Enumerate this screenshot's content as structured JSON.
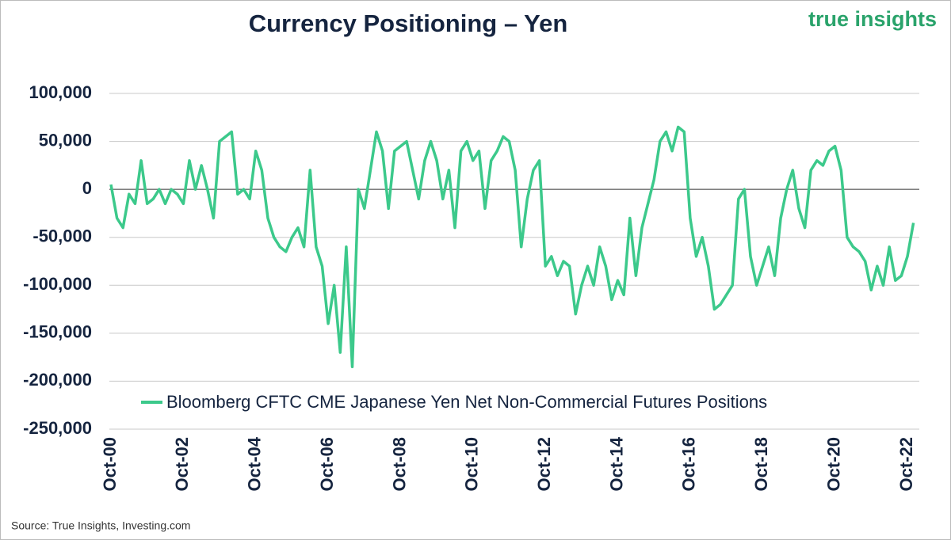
{
  "chart_data": {
    "type": "line",
    "title": "Currency Positioning – Yen",
    "logo": "true insights",
    "source": "Source: True Insights, Investing.com",
    "categories": [
      "Oct-00",
      null,
      null,
      null,
      null,
      null,
      null,
      null,
      null,
      null,
      null,
      null,
      "Oct-02",
      null,
      null,
      null,
      null,
      null,
      null,
      null,
      null,
      null,
      null,
      null,
      "Oct-04",
      null,
      null,
      null,
      null,
      null,
      null,
      null,
      null,
      null,
      null,
      null,
      "Oct-06",
      null,
      null,
      null,
      null,
      null,
      null,
      null,
      null,
      null,
      null,
      null,
      "Oct-08",
      null,
      null,
      null,
      null,
      null,
      null,
      null,
      null,
      null,
      null,
      null,
      "Oct-10",
      null,
      null,
      null,
      null,
      null,
      null,
      null,
      null,
      null,
      null,
      null,
      "Oct-12",
      null,
      null,
      null,
      null,
      null,
      null,
      null,
      null,
      null,
      null,
      null,
      "Oct-14",
      null,
      null,
      null,
      null,
      null,
      null,
      null,
      null,
      null,
      null,
      null,
      "Oct-16",
      null,
      null,
      null,
      null,
      null,
      null,
      null,
      null,
      null,
      null,
      null,
      "Oct-18",
      null,
      null,
      null,
      null,
      null,
      null,
      null,
      null,
      null,
      null,
      null,
      "Oct-20",
      null,
      null,
      null,
      null,
      null,
      null,
      null,
      null,
      null,
      null,
      null,
      "Oct-22",
      null
    ],
    "series": [
      {
        "name": "Bloomberg CFTC CME Japanese Yen Net Non-Commercial Futures Positions",
        "color": "#3cc98b",
        "values": [
          5000,
          -30000,
          -40000,
          -5000,
          -15000,
          30000,
          -15000,
          -10000,
          0,
          -15000,
          0,
          -5000,
          -15000,
          30000,
          0,
          25000,
          0,
          -30000,
          50000,
          55000,
          60000,
          -5000,
          0,
          -10000,
          40000,
          20000,
          -30000,
          -50000,
          -60000,
          -65000,
          -50000,
          -40000,
          -60000,
          20000,
          -60000,
          -80000,
          -140000,
          -100000,
          -170000,
          -60000,
          -185000,
          0,
          -20000,
          20000,
          60000,
          40000,
          -20000,
          40000,
          45000,
          50000,
          20000,
          -10000,
          30000,
          50000,
          30000,
          -10000,
          20000,
          -40000,
          40000,
          50000,
          30000,
          40000,
          -20000,
          30000,
          40000,
          55000,
          50000,
          20000,
          -60000,
          -10000,
          20000,
          30000,
          -80000,
          -70000,
          -90000,
          -75000,
          -80000,
          -130000,
          -100000,
          -80000,
          -100000,
          -60000,
          -80000,
          -115000,
          -95000,
          -110000,
          -30000,
          -90000,
          -40000,
          -15000,
          10000,
          50000,
          60000,
          40000,
          65000,
          60000,
          -30000,
          -70000,
          -50000,
          -80000,
          -125000,
          -120000,
          -110000,
          -100000,
          -10000,
          0,
          -70000,
          -100000,
          -80000,
          -60000,
          -90000,
          -30000,
          0,
          20000,
          -20000,
          -40000,
          20000,
          30000,
          25000,
          40000,
          45000,
          20000,
          -50000,
          -60000,
          -65000,
          -75000,
          -105000,
          -80000,
          -100000,
          -60000,
          -95000,
          -90000,
          -70000,
          -35000
        ]
      }
    ],
    "ylim": [
      -250000,
      100000
    ],
    "yticks": [
      {
        "value": -250000,
        "label": "-250,000"
      },
      {
        "value": -200000,
        "label": "-200,000"
      },
      {
        "value": -150000,
        "label": "-150,000"
      },
      {
        "value": -100000,
        "label": "-100,000"
      },
      {
        "value": -50000,
        "label": "-50,000"
      },
      0,
      {
        "value": 50000,
        "label": "50,000"
      },
      {
        "value": 100000,
        "label": "100,000"
      }
    ],
    "grid": true
  }
}
